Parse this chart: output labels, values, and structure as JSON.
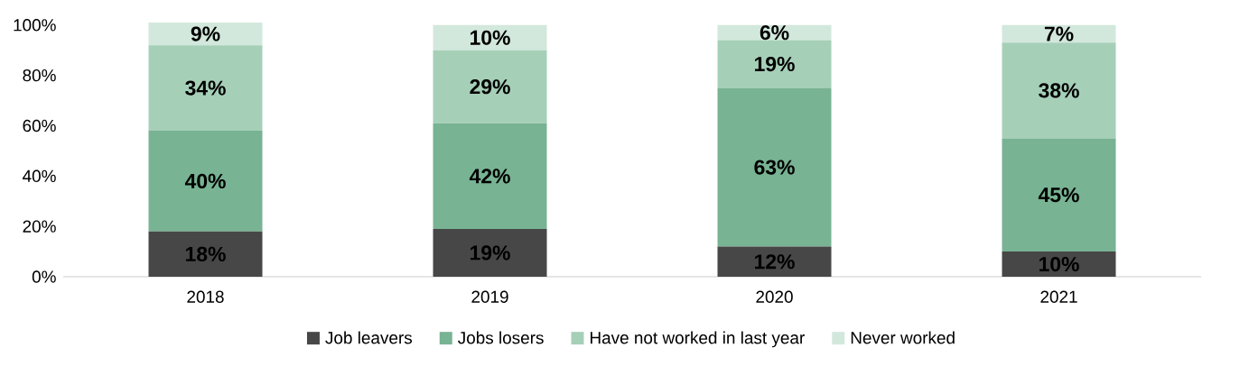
{
  "chart_data": {
    "type": "bar",
    "stacked": true,
    "categories": [
      "2018",
      "2019",
      "2020",
      "2021"
    ],
    "series": [
      {
        "name": "Job leavers",
        "color": "#474747",
        "values": [
          18,
          19,
          12,
          10
        ],
        "value_labels": [
          "18%",
          "19%",
          "12%",
          "10%"
        ]
      },
      {
        "name": "Jobs losers",
        "color": "#78b393",
        "values": [
          40,
          42,
          63,
          45
        ],
        "value_labels": [
          "40%",
          "42%",
          "63%",
          "45%"
        ]
      },
      {
        "name": "Have not worked in last year",
        "color": "#a6cfb8",
        "values": [
          34,
          29,
          19,
          38
        ],
        "value_labels": [
          "34%",
          "29%",
          "19%",
          "38%"
        ]
      },
      {
        "name": "Never worked",
        "color": "#d3e8dc",
        "values": [
          9,
          10,
          6,
          7
        ],
        "value_labels": [
          "9%",
          "10%",
          "6%",
          "7%"
        ]
      }
    ],
    "ylim": [
      0,
      101
    ],
    "yticks": [
      {
        "value": 0,
        "label": "0%"
      },
      {
        "value": 20,
        "label": "20%"
      },
      {
        "value": 40,
        "label": "40%"
      },
      {
        "value": 60,
        "label": "60%"
      },
      {
        "value": 80,
        "label": "80%"
      },
      {
        "value": 100,
        "label": "100%"
      }
    ],
    "legend": "bottom"
  }
}
